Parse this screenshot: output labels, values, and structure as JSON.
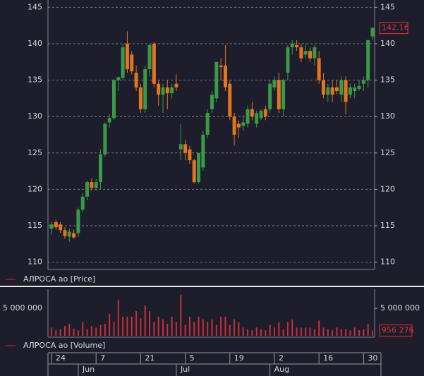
{
  "chart_data": [
    {
      "type": "candlestick",
      "name": "АЛРОСА ао [Price]",
      "color": "#d0303a",
      "up_color": "#3a9a48",
      "down_color": "#e2761f",
      "open": [
        114.6,
        115.5,
        115.2,
        114.4,
        113.5,
        114.0,
        114.0,
        117.2,
        119.0,
        121.0,
        120.2,
        121.0,
        124.8,
        129.2,
        129.8,
        135.0,
        135.3,
        140.0,
        138.5,
        136.0,
        134.0,
        131.0,
        136.5,
        140.0,
        134.5,
        133.0,
        134.0,
        133.2,
        134.5,
        125.5,
        126.2,
        125.5,
        124.0,
        121.0,
        123.0,
        127.5,
        131.0,
        132.5,
        137.0,
        137.0,
        134.5,
        130.0,
        129.0,
        128.7,
        129.0,
        131.0,
        129.0,
        129.8,
        131.0,
        131.0,
        134.0,
        135.0,
        131.0,
        136.0,
        139.5,
        139.8,
        139.5,
        138.5,
        139.0,
        138.0,
        138.0,
        135.0,
        133.0,
        134.0,
        134.0,
        133.0,
        135.0,
        133.0,
        133.5,
        133.8,
        134.5,
        135.0,
        141.0
      ],
      "high": [
        115.6,
        115.8,
        115.5,
        114.8,
        114.6,
        114.5,
        117.5,
        119.5,
        121.2,
        121.5,
        121.4,
        125.5,
        129.2,
        130.3,
        135.2,
        135.5,
        140.0,
        141.7,
        139.0,
        137.0,
        134.5,
        137.0,
        140.0,
        140.2,
        135.0,
        134.5,
        135.0,
        134.5,
        135.8,
        129.0,
        126.8,
        126.0,
        124.2,
        125.0,
        128.0,
        131.0,
        133.5,
        137.5,
        138.0,
        139.8,
        135.0,
        130.5,
        129.5,
        130.2,
        131.5,
        132.0,
        130.8,
        131.0,
        131.5,
        135.0,
        135.5,
        136.0,
        135.2,
        139.8,
        140.5,
        140.5,
        140.0,
        140.0,
        139.5,
        139.8,
        139.0,
        136.0,
        134.5,
        135.0,
        135.0,
        135.5,
        135.5,
        134.5,
        134.5,
        135.0,
        135.5,
        140.5,
        142.3
      ],
      "low": [
        113.8,
        114.5,
        114.0,
        113.2,
        112.8,
        113.2,
        113.5,
        116.8,
        118.5,
        119.8,
        119.8,
        120.0,
        124.5,
        128.5,
        129.5,
        133.5,
        135.0,
        136.0,
        135.8,
        133.5,
        130.5,
        130.5,
        135.5,
        134.0,
        131.5,
        130.5,
        131.0,
        132.5,
        133.5,
        124.0,
        124.0,
        123.5,
        120.8,
        120.8,
        122.5,
        127.0,
        130.5,
        132.0,
        135.0,
        133.5,
        129.5,
        126.0,
        127.0,
        128.0,
        128.5,
        129.5,
        128.5,
        129.5,
        129.5,
        130.5,
        133.5,
        130.5,
        130.0,
        135.0,
        138.5,
        139.0,
        137.5,
        138.0,
        137.5,
        137.0,
        134.5,
        132.5,
        132.0,
        132.0,
        133.0,
        132.0,
        130.3,
        132.5,
        132.5,
        133.5,
        133.5,
        134.0,
        140.5
      ],
      "close": [
        115.2,
        114.8,
        114.4,
        113.6,
        114.2,
        113.4,
        117.2,
        119.0,
        121.0,
        120.2,
        121.0,
        124.8,
        129.0,
        129.8,
        135.0,
        135.4,
        139.5,
        136.5,
        136.2,
        134.0,
        131.0,
        136.5,
        139.8,
        134.5,
        133.0,
        134.0,
        133.2,
        134.0,
        134.0,
        126.2,
        125.0,
        124.0,
        121.0,
        125.0,
        127.5,
        130.5,
        133.0,
        137.5,
        136.8,
        134.0,
        130.0,
        127.5,
        128.5,
        129.2,
        131.0,
        130.0,
        130.5,
        130.8,
        130.0,
        134.5,
        135.0,
        131.0,
        135.0,
        139.5,
        140.0,
        139.5,
        138.0,
        139.0,
        138.0,
        139.5,
        135.0,
        133.0,
        134.0,
        133.0,
        133.5,
        135.0,
        132.0,
        134.0,
        134.0,
        134.2,
        135.0,
        140.5,
        142.16
      ],
      "ylim": [
        109,
        146
      ],
      "yticks": [
        110,
        115,
        120,
        125,
        130,
        135,
        140,
        145
      ],
      "grid": true
    },
    {
      "type": "bar",
      "name": "АЛРОСА ао [Volume]",
      "color": "#c8303a",
      "values": [
        1500000,
        1000000,
        1200000,
        1800000,
        2200000,
        1300000,
        1000000,
        2500000,
        1200000,
        1800000,
        1500000,
        2000000,
        2200000,
        4000000,
        2500000,
        6500000,
        3500000,
        3500000,
        3500000,
        4500000,
        3200000,
        5500000,
        4500000,
        2500000,
        3500000,
        3000000,
        2200000,
        3500000,
        2500000,
        7500000,
        2000000,
        3500000,
        2500000,
        3500000,
        3000000,
        2500000,
        3000000,
        2000000,
        3500000,
        3500000,
        2000000,
        3000000,
        2500000,
        1500000,
        1200000,
        1000000,
        1500000,
        1200000,
        1000000,
        2000000,
        1500000,
        2500000,
        1200000,
        2500000,
        3000000,
        1500000,
        1500000,
        1500000,
        1500000,
        1200000,
        2800000,
        1500000,
        1200000,
        1000000,
        1500000,
        1200000,
        1200000,
        1000000,
        1500000,
        1000000,
        1200000,
        2200000,
        956276
      ],
      "value_labels": [
        null,
        null,
        null,
        null,
        null,
        null,
        null,
        null,
        null,
        null,
        null,
        null,
        null,
        null,
        null,
        null,
        null,
        null,
        null,
        null,
        null,
        null,
        null,
        null,
        null,
        null,
        null,
        null,
        null,
        null,
        null,
        null,
        null,
        null,
        null,
        null,
        null,
        null,
        null,
        null,
        null,
        null,
        null,
        null,
        null,
        null,
        null,
        null,
        null,
        null,
        null,
        null,
        null,
        null,
        null,
        null,
        null,
        null,
        null,
        null,
        null,
        null,
        null,
        null,
        null,
        null,
        null,
        null,
        null,
        null,
        null,
        null,
        "956 276"
      ],
      "ylim": [
        0,
        8500000
      ],
      "yticks": [
        {
          "value": 5000000,
          "label": "5 000 000"
        }
      ],
      "categories": [
        "24",
        null,
        null,
        null,
        null,
        null,
        null,
        null,
        null,
        null,
        "7",
        null,
        null,
        null,
        null,
        null,
        null,
        null,
        null,
        null,
        "21",
        null,
        null,
        null,
        null,
        null,
        null,
        null,
        null,
        null,
        "5",
        null,
        null,
        null,
        null,
        null,
        null,
        null,
        null,
        null,
        "19",
        null,
        null,
        null,
        null,
        null,
        null,
        null,
        null,
        null,
        "2",
        null,
        null,
        null,
        null,
        null,
        null,
        null,
        null,
        null,
        "16",
        null,
        null,
        null,
        null,
        null,
        null,
        null,
        null,
        null,
        "30",
        null,
        null
      ],
      "months": [
        null,
        null,
        null,
        null,
        null,
        null,
        "Jun",
        null,
        null,
        null,
        null,
        null,
        null,
        null,
        null,
        null,
        null,
        null,
        null,
        null,
        null,
        null,
        null,
        null,
        null,
        null,
        null,
        null,
        "Jul",
        null,
        null,
        null,
        null,
        null,
        null,
        null,
        null,
        null,
        null,
        null,
        null,
        null,
        null,
        null,
        null,
        null,
        null,
        null,
        null,
        "Aug",
        null,
        null,
        null,
        null,
        null,
        null,
        null,
        null,
        null,
        null,
        null,
        null,
        null,
        null,
        null,
        null,
        null,
        null,
        null,
        null,
        null,
        null,
        null
      ]
    }
  ]
}
